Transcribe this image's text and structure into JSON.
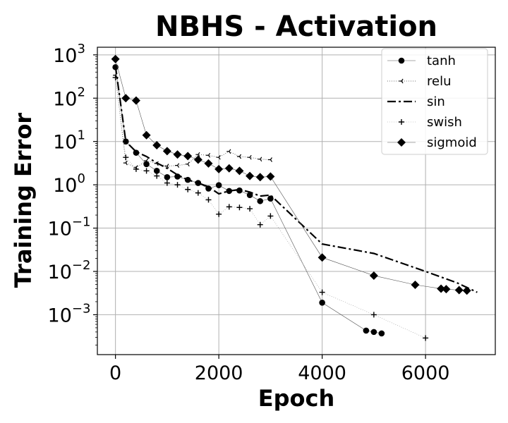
{
  "chart_data": {
    "type": "line",
    "title": "NBHS - Activation",
    "xlabel": "Epoch",
    "ylabel": "Training Error",
    "xlim": [
      -350,
      7350
    ],
    "ylim": [
      0.00012,
      1500
    ],
    "yscale": "log",
    "grid": true,
    "legend_position": "top-right",
    "x_ticks": [
      {
        "value": 0,
        "label": "0"
      },
      {
        "value": 2000,
        "label": "2000"
      },
      {
        "value": 4000,
        "label": "4000"
      },
      {
        "value": 6000,
        "label": "6000"
      }
    ],
    "y_ticks": [
      {
        "value": 1000,
        "base": "10",
        "exp": "3"
      },
      {
        "value": 100,
        "base": "10",
        "exp": "2"
      },
      {
        "value": 10,
        "base": "10",
        "exp": "1"
      },
      {
        "value": 1,
        "base": "10",
        "exp": "0"
      },
      {
        "value": 0.1,
        "base": "10",
        "exp": "−1"
      },
      {
        "value": 0.01,
        "base": "10",
        "exp": "−2"
      },
      {
        "value": 0.001,
        "base": "10",
        "exp": "−3"
      }
    ],
    "series": [
      {
        "name": "tanh",
        "marker": "circle",
        "line": "solid-thin",
        "color": "#000000",
        "points": [
          [
            0,
            520
          ],
          [
            200,
            10
          ],
          [
            400,
            5.5
          ],
          [
            600,
            3.0
          ],
          [
            800,
            2.1
          ],
          [
            1000,
            1.5
          ],
          [
            1200,
            1.55
          ],
          [
            1400,
            1.3
          ],
          [
            1600,
            1.1
          ],
          [
            1800,
            0.82
          ],
          [
            2000,
            0.98
          ],
          [
            2200,
            0.72
          ],
          [
            2400,
            0.74
          ],
          [
            2600,
            0.58
          ],
          [
            2800,
            0.42
          ],
          [
            3000,
            0.48
          ],
          [
            4000,
            0.0019
          ],
          [
            4850,
            0.00043
          ],
          [
            5000,
            0.0004
          ],
          [
            5150,
            0.00037
          ]
        ]
      },
      {
        "name": "relu",
        "marker": "tri-left",
        "line": "dotted",
        "color": "#000000",
        "points": [
          [
            0,
            340
          ],
          [
            200,
            3.2
          ],
          [
            400,
            2.5
          ],
          [
            600,
            3.6
          ],
          [
            800,
            3.1
          ],
          [
            1000,
            2.7
          ],
          [
            1200,
            2.8
          ],
          [
            1400,
            3.0
          ],
          [
            1600,
            5.0
          ],
          [
            1800,
            4.8
          ],
          [
            2000,
            4.3
          ],
          [
            2200,
            5.9
          ],
          [
            2400,
            4.5
          ],
          [
            2600,
            4.3
          ],
          [
            2800,
            3.9
          ],
          [
            3000,
            3.8
          ]
        ]
      },
      {
        "name": "sin",
        "marker": "none",
        "line": "dash-dot",
        "color": "#000000",
        "points": [
          [
            0,
            560
          ],
          [
            200,
            10
          ],
          [
            400,
            5.8
          ],
          [
            600,
            4.5
          ],
          [
            800,
            3.2
          ],
          [
            1000,
            2.4
          ],
          [
            1200,
            1.7
          ],
          [
            1400,
            1.3
          ],
          [
            1600,
            1.1
          ],
          [
            1800,
            0.9
          ],
          [
            2000,
            0.62
          ],
          [
            2200,
            0.72
          ],
          [
            2400,
            0.78
          ],
          [
            2600,
            0.68
          ],
          [
            2800,
            0.55
          ],
          [
            3000,
            0.58
          ],
          [
            4000,
            0.043
          ],
          [
            5000,
            0.026
          ],
          [
            6000,
            0.01
          ],
          [
            6600,
            0.0055
          ],
          [
            7000,
            0.0033
          ]
        ]
      },
      {
        "name": "swish",
        "marker": "plus",
        "line": "dotted-faint",
        "color": "#000000",
        "points": [
          [
            0,
            300
          ],
          [
            200,
            4.3
          ],
          [
            400,
            2.3
          ],
          [
            600,
            2.1
          ],
          [
            800,
            1.6
          ],
          [
            1000,
            1.1
          ],
          [
            1200,
            1.0
          ],
          [
            1400,
            0.78
          ],
          [
            1600,
            0.65
          ],
          [
            1800,
            0.45
          ],
          [
            2000,
            0.21
          ],
          [
            2200,
            0.31
          ],
          [
            2400,
            0.3
          ],
          [
            2600,
            0.28
          ],
          [
            2800,
            0.12
          ],
          [
            3000,
            0.19
          ],
          [
            4000,
            0.0033
          ],
          [
            5000,
            0.001
          ],
          [
            6000,
            0.00029
          ]
        ]
      },
      {
        "name": "sigmoid",
        "marker": "diamond",
        "line": "solid-thin",
        "color": "#000000",
        "points": [
          [
            0,
            800
          ],
          [
            200,
            100
          ],
          [
            400,
            88
          ],
          [
            600,
            14
          ],
          [
            800,
            8.2
          ],
          [
            1000,
            6.0
          ],
          [
            1200,
            5.0
          ],
          [
            1400,
            4.6
          ],
          [
            1600,
            3.8
          ],
          [
            1800,
            3.1
          ],
          [
            2000,
            2.3
          ],
          [
            2200,
            2.4
          ],
          [
            2400,
            2.1
          ],
          [
            2600,
            1.6
          ],
          [
            2800,
            1.5
          ],
          [
            3000,
            1.55
          ],
          [
            4000,
            0.021
          ],
          [
            5000,
            0.008
          ],
          [
            5800,
            0.0049
          ],
          [
            6300,
            0.004
          ],
          [
            6400,
            0.0039
          ],
          [
            6650,
            0.0037
          ],
          [
            6800,
            0.0036
          ]
        ]
      }
    ]
  }
}
